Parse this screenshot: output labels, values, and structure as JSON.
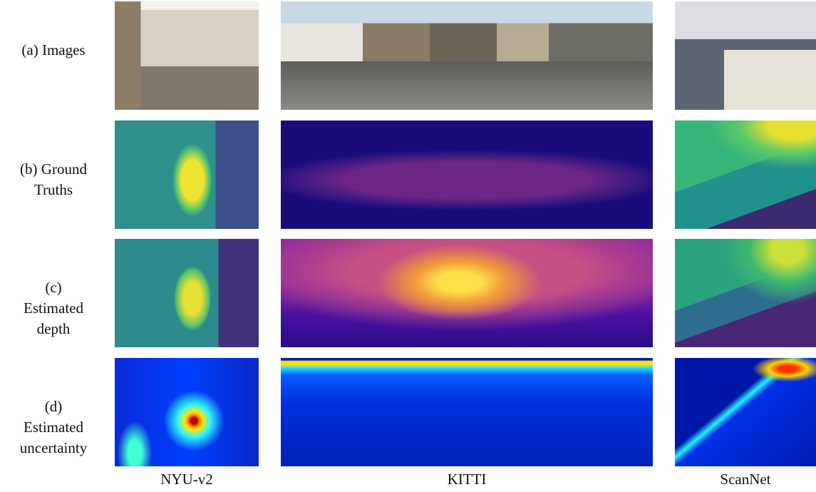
{
  "rows": {
    "a": [
      "(a) Images"
    ],
    "b": [
      "(b) Ground",
      "Truths"
    ],
    "c": [
      "(c)",
      "Estimated",
      "depth"
    ],
    "d": [
      "(d)",
      "Estimated",
      "uncertainty"
    ]
  },
  "columns": [
    "NYU-v2",
    "KITTI",
    "ScanNet"
  ]
}
